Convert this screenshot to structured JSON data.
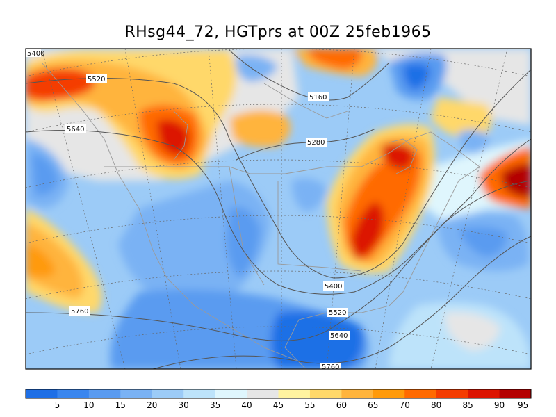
{
  "title": "RHsg44_72, HGTprs at 00Z  25feb1965",
  "colorbar": {
    "colors": [
      "#1e6fe6",
      "#3a86ee",
      "#5a9bf0",
      "#7ab2f4",
      "#9ccbf7",
      "#bde3fa",
      "#dff6fd",
      "#e6e6e6",
      "#fff3a0",
      "#ffd86a",
      "#ffb43c",
      "#ff9a0a",
      "#ff6a00",
      "#f43c00",
      "#dc1400",
      "#b40000"
    ],
    "labels": [
      "5",
      "10",
      "15",
      "20",
      "30",
      "35",
      "40",
      "45",
      "55",
      "60",
      "65",
      "70",
      "80",
      "85",
      "90",
      "95"
    ]
  },
  "contour_labels": {
    "c5520": "5520",
    "c5640_left": "5640",
    "c5160": "5160",
    "c5280": "5280",
    "c5400": "5400",
    "c5760": "5760",
    "c5520_s": "5520",
    "c5640_s": "5640",
    "c5760_s": "5760",
    "c5400_corner": "5400"
  }
}
